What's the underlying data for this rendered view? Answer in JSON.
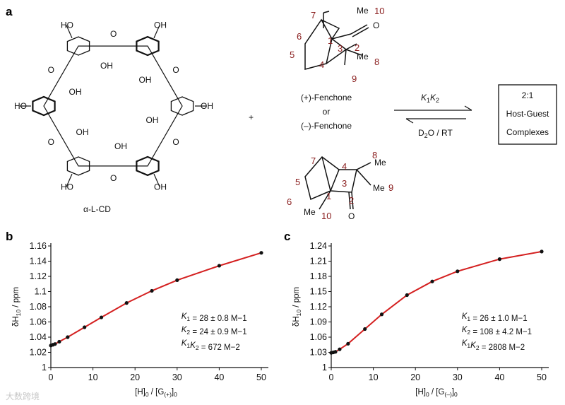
{
  "panels": {
    "a": "a",
    "b": "b",
    "c": "c"
  },
  "scheme": {
    "host_label": "α-L-CD",
    "plus": "+",
    "guest_top": "(+)-Fenchone",
    "guest_or": "or",
    "guest_bottom": "(–)-Fenchone",
    "arrow_top": "K1K2",
    "arrow_bottom": "D2O / RT",
    "product_lines": [
      "2:1",
      "Host-Guest",
      "Complexes"
    ],
    "oh": "OH",
    "ho": "HO",
    "o": "O",
    "me": "Me",
    "top_numbers": [
      "7",
      "10",
      "6",
      "1",
      "2",
      "5",
      "3",
      "4",
      "8",
      "9"
    ],
    "bottom_numbers": [
      "7",
      "8",
      "4",
      "5",
      "3",
      "9",
      "6",
      "1",
      "2",
      "10"
    ]
  },
  "chart_data": [
    {
      "type": "scatter",
      "xlabel": "[H]0 / [G(+)]0",
      "ylabel": "δH10 / ppm",
      "xlim": [
        0,
        50
      ],
      "ylim": [
        1,
        1.16
      ],
      "xticks": [
        "0",
        "10",
        "20",
        "30",
        "40",
        "50"
      ],
      "yticks": [
        "1",
        "1.02",
        "1.04",
        "1.06",
        "1.08",
        "1.1",
        "1.12",
        "1.14",
        "1.16"
      ],
      "points_x": [
        0,
        0.5,
        1,
        2,
        4,
        8,
        12,
        18,
        24,
        30,
        40,
        50
      ],
      "points_y": [
        1.029,
        1.03,
        1.031,
        1.034,
        1.04,
        1.053,
        1.066,
        1.085,
        1.101,
        1.115,
        1.134,
        1.151
      ],
      "fit_color": "#d42020",
      "annotations": [
        "K1 = 28 ± 0.8 M−1",
        "K2 = 24 ± 0.9 M−1",
        "K1K2 = 672 M−2"
      ]
    },
    {
      "type": "scatter",
      "xlabel": "[H]0 / [G(–)]0",
      "ylabel": "δH10 / ppm",
      "xlim": [
        0,
        50
      ],
      "ylim": [
        1,
        1.24
      ],
      "xticks": [
        "0",
        "10",
        "20",
        "30",
        "40",
        "50"
      ],
      "yticks": [
        "1",
        "1.03",
        "1.06",
        "1.09",
        "1.12",
        "1.15",
        "1.18",
        "1.21",
        "1.24"
      ],
      "points_x": [
        0,
        0.5,
        1,
        2,
        4,
        8,
        12,
        18,
        24,
        30,
        40,
        50
      ],
      "points_y": [
        1.029,
        1.03,
        1.031,
        1.036,
        1.047,
        1.076,
        1.105,
        1.143,
        1.17,
        1.19,
        1.214,
        1.229
      ],
      "fit_color": "#d42020",
      "annotations": [
        "K1 = 26 ± 1.0 M−1",
        "K2 = 108 ± 4.2 M−1",
        "K1K2 = 2808 M−2"
      ]
    }
  ],
  "watermark": "大数跨境"
}
